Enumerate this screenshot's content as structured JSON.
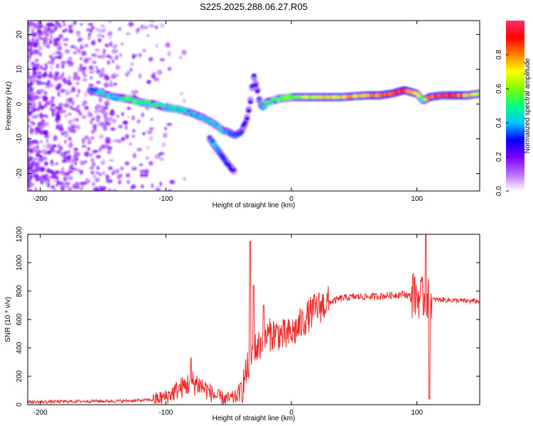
{
  "figure": {
    "title": "S225.2025.288.06.27.R05"
  },
  "chart_data": [
    {
      "type": "heatmap",
      "xlabel": "Height of straight line (km)",
      "ylabel": "Frequency (Hz)",
      "xlim": [
        -210,
        150
      ],
      "ylim": [
        -25,
        24
      ],
      "xticks": [
        "-200",
        "-100",
        "0",
        "100"
      ],
      "yticks": [
        "-20",
        "-10",
        "0",
        "10",
        "20"
      ],
      "colorbar": {
        "label": "Normalized spectral amplitude",
        "range": [
          0,
          1
        ],
        "ticks": [
          "0.0",
          "0.2",
          "0.4",
          "0.6",
          "0.8"
        ],
        "colors": [
          "#ffffff",
          "#b86cff",
          "#7a00ff",
          "#0000ff",
          "#00c8ff",
          "#00ff80",
          "#7cff00",
          "#ffff00",
          "#ff8000",
          "#ff0000",
          "#ff2e6e"
        ]
      },
      "main_signal_track": {
        "x": [
          -160,
          -150,
          -140,
          -130,
          -120,
          -110,
          -100,
          -90,
          -80,
          -70,
          -60,
          -55,
          -50,
          -45,
          -40,
          -36,
          -33,
          -30,
          -27,
          -25,
          -22,
          -20,
          -10,
          0,
          20,
          40,
          60,
          70,
          80,
          90,
          100,
          105,
          110,
          120,
          130,
          140,
          150
        ],
        "frequency": [
          4,
          3,
          2,
          1.5,
          0.5,
          0,
          -1,
          -1.5,
          -2.5,
          -4,
          -6,
          -7.5,
          -8,
          -9,
          -8,
          -5,
          0,
          8,
          4,
          0,
          -1,
          0.5,
          1.5,
          2,
          2,
          2,
          2.5,
          2.5,
          3,
          4,
          3,
          1,
          2,
          2.5,
          2.5,
          2.5,
          3
        ],
        "amplitude": [
          0.35,
          0.45,
          0.4,
          0.55,
          0.5,
          0.5,
          0.45,
          0.45,
          0.4,
          0.45,
          0.4,
          0.4,
          0.4,
          0.35,
          0.35,
          0.3,
          0.3,
          0.3,
          0.3,
          0.4,
          0.45,
          0.5,
          0.55,
          0.6,
          0.7,
          0.75,
          0.8,
          0.85,
          0.9,
          0.85,
          0.7,
          0.5,
          0.85,
          0.95,
          0.9,
          0.75,
          0.7
        ]
      },
      "secondary_signal_track": {
        "x": [
          -65,
          -60,
          -55,
          -50,
          -45
        ],
        "frequency": [
          -10,
          -12.5,
          -15,
          -17.5,
          -19.5
        ],
        "amplitude": [
          0.35,
          0.4,
          0.35,
          0.3,
          0.25
        ]
      }
    },
    {
      "type": "line",
      "xlabel": "Height of straight line (km)",
      "ylabel": "SNR (10 * v/v)",
      "xlim": [
        -210,
        150
      ],
      "ylim": [
        0,
        1200
      ],
      "xticks": [
        "-200",
        "-100",
        "0",
        "100"
      ],
      "yticks": [
        "0",
        "200",
        "400",
        "600",
        "800",
        "1000",
        "1200"
      ],
      "color": "#ee2a2a",
      "series": [
        {
          "name": "SNR",
          "x": [
            -210,
            -200,
            -180,
            -160,
            -140,
            -120,
            -110,
            -100,
            -95,
            -90,
            -85,
            -80,
            -75,
            -70,
            -65,
            -60,
            -55,
            -50,
            -45,
            -40,
            -35,
            -30,
            -25,
            -20,
            -15,
            -10,
            -5,
            0,
            5,
            10,
            15,
            20,
            30,
            40,
            50,
            60,
            70,
            80,
            90,
            95,
            100,
            105,
            110,
            115,
            120,
            130,
            140,
            150
          ],
          "y": [
            20,
            20,
            22,
            25,
            25,
            30,
            35,
            55,
            80,
            110,
            130,
            160,
            150,
            120,
            90,
            60,
            45,
            40,
            50,
            100,
            250,
            380,
            420,
            480,
            500,
            500,
            480,
            500,
            540,
            590,
            640,
            680,
            720,
            750,
            760,
            760,
            765,
            770,
            780,
            760,
            760,
            750,
            740,
            740,
            740,
            735,
            730,
            730
          ]
        }
      ],
      "spikes": [
        {
          "x": -80,
          "peak": 330
        },
        {
          "x": -33,
          "peak": 1150
        },
        {
          "x": -30,
          "peak": 840
        },
        {
          "x": -22,
          "peak": 700
        },
        {
          "x": 97,
          "peak": 920
        },
        {
          "x": 107,
          "peak": 1200
        },
        {
          "x": 110,
          "low": 40
        }
      ]
    }
  ]
}
